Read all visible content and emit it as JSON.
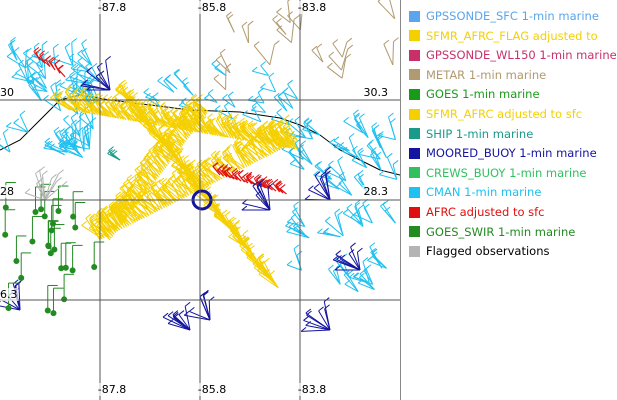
{
  "map": {
    "lon_labels_top": [
      "-87.8",
      "-85.8",
      "-83.8"
    ],
    "lon_labels_bottom": [
      "-87.8",
      "-85.8",
      "-83.8"
    ],
    "lat_labels_left": [
      "30",
      "28",
      "6.3"
    ],
    "lat_labels_right": [
      "30.3",
      "28.3"
    ]
  },
  "legend": {
    "items": [
      {
        "label": "GPSSONDE_SFC 1-min marine",
        "color": "#5aa5ec"
      },
      {
        "label": "SFMR_AFRC_FLAG adjusted to",
        "color": "#f5d000"
      },
      {
        "label": "GPSSONDE_WL150 1-min marine",
        "color": "#c8306a"
      },
      {
        "label": "METAR 1-min marine",
        "color": "#b09a70"
      },
      {
        "label": "GOES 1-min marine",
        "color": "#1a9a1a"
      },
      {
        "label": "SFMR_AFRC adjusted to sfc",
        "color": "#f5d000"
      },
      {
        "label": "SHIP 1-min marine",
        "color": "#1a9a8a"
      },
      {
        "label": "MOORED_BUOY 1-min marine",
        "color": "#1414a0"
      },
      {
        "label": "CREWS_BUOY 1-min marine",
        "color": "#30c060"
      },
      {
        "label": "CMAN 1-min marine",
        "color": "#20c0f0"
      },
      {
        "label": "AFRC adjusted to sfc",
        "color": "#e01010"
      },
      {
        "label": "GOES_SWIR 1-min marine",
        "color": "#228b22"
      },
      {
        "label": "Flagged observations",
        "color": "#b4b4b4",
        "text_color": "#000000"
      }
    ]
  }
}
